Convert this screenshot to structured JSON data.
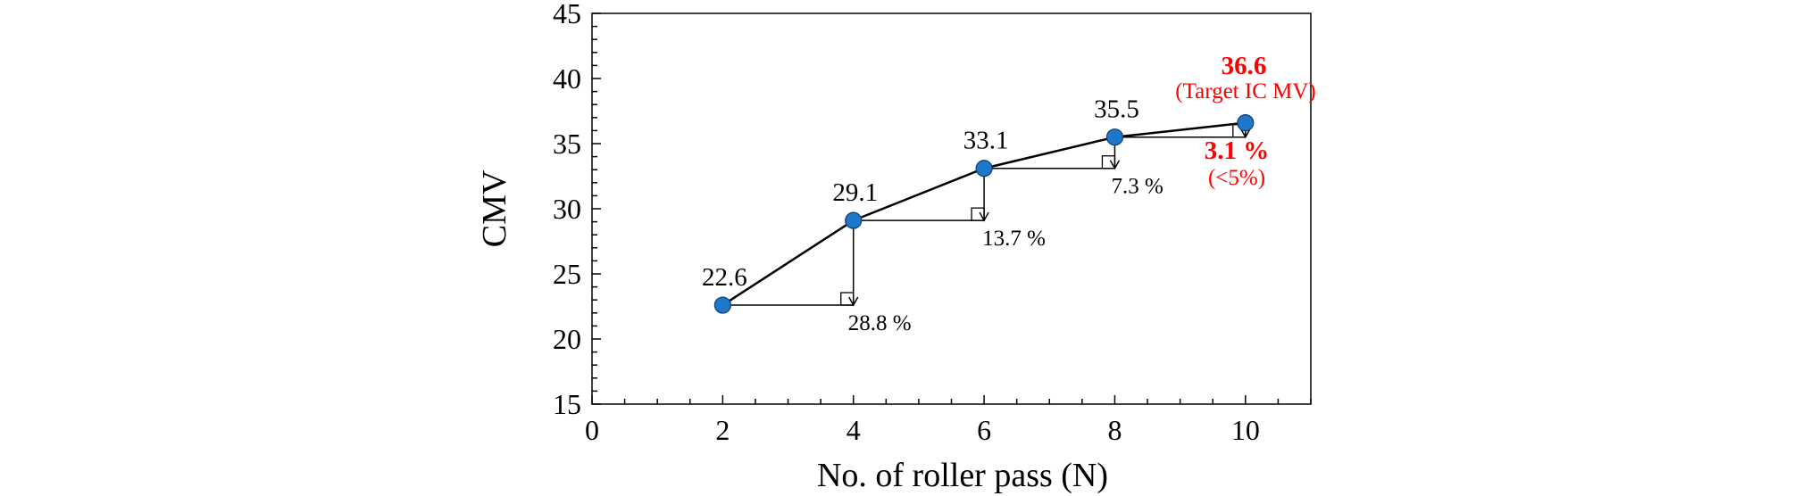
{
  "chart_data": {
    "type": "line",
    "xlabel": "No. of roller pass (N)",
    "ylabel": "CMV",
    "xlim": [
      0,
      11
    ],
    "ylim": [
      15,
      45
    ],
    "x_ticks": [
      0,
      2,
      4,
      6,
      8,
      10
    ],
    "y_ticks": [
      15,
      20,
      25,
      30,
      35,
      40,
      45
    ],
    "grid": false,
    "series": [
      {
        "x": [
          2,
          4,
          6,
          8,
          10
        ],
        "y": [
          22.6,
          29.1,
          33.1,
          35.5,
          36.6
        ],
        "marker_color": "#1f77c9"
      }
    ],
    "data_labels": [
      "22.6",
      "29.1",
      "33.1",
      "35.5"
    ],
    "target": {
      "value_label": "36.6",
      "label": "(Target IC MV)",
      "color": "#ff0000"
    },
    "increments": [
      {
        "label": "28.8 %",
        "from_x": 2,
        "to_x": 4
      },
      {
        "label": "13.7 %",
        "from_x": 4,
        "to_x": 6
      },
      {
        "label": "7.3 %",
        "from_x": 6,
        "to_x": 8
      }
    ],
    "final_increment": {
      "label": "3.1 %",
      "note": "(<5%)",
      "color": "#ff0000"
    }
  }
}
